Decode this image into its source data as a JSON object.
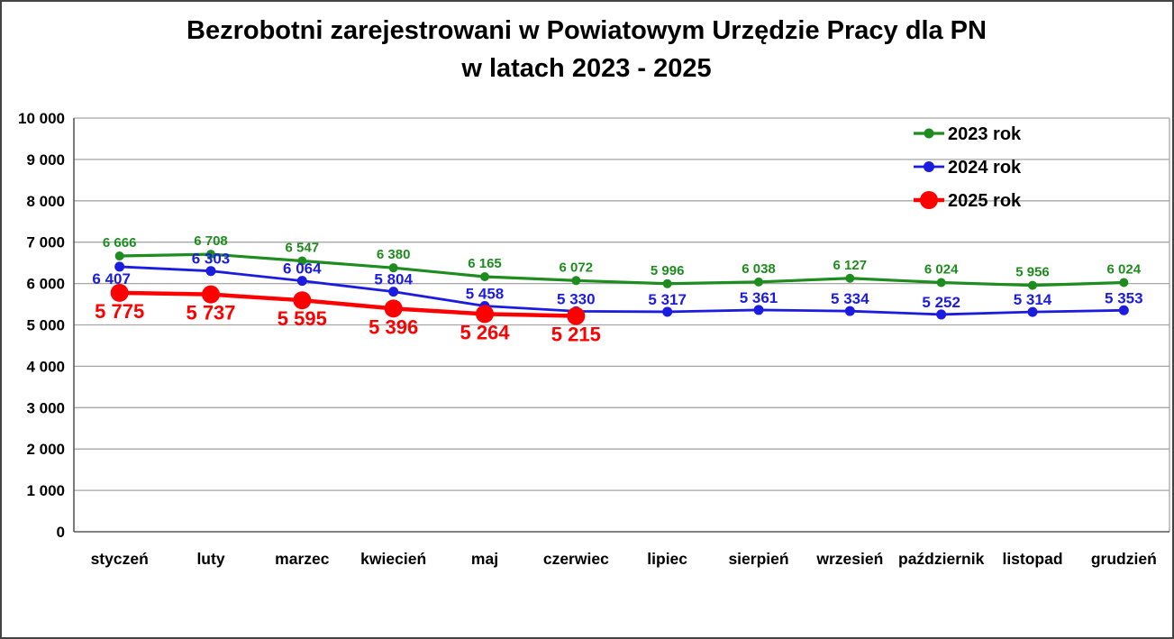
{
  "page": {
    "background": "#ffffff",
    "border_color": "#444444"
  },
  "chart_data": {
    "type": "line",
    "title": "Bezrobotni zarejestrowani w Powiatowym Urzędzie Pracy dla PN w latach 2023 - 2025",
    "title_line1": "Bezrobotni zarejestrowani w Powiatowym Urzędzie Pracy dla PN",
    "title_line2": "w latach 2023 - 2025",
    "xlabel": "",
    "ylabel": "",
    "ylim": [
      0,
      10000
    ],
    "y_ticks": [
      0,
      1000,
      2000,
      3000,
      4000,
      5000,
      6000,
      7000,
      8000,
      9000,
      10000
    ],
    "y_tick_labels": [
      "0",
      "1 000",
      "2 000",
      "3 000",
      "4 000",
      "5 000",
      "6 000",
      "7 000",
      "8 000",
      "9 000",
      "10 000"
    ],
    "grid": true,
    "gridline_color": "#a6a6a6",
    "axis_color": "#595959",
    "text_color": "#000000",
    "legend_position": "top-right",
    "categories": [
      "styczeń",
      "luty",
      "marzec",
      "kwiecień",
      "maj",
      "czerwiec",
      "lipiec",
      "sierpień",
      "wrzesień",
      "październik",
      "listopad",
      "grudzień"
    ],
    "series": [
      {
        "name": "2023 rok",
        "color": "#1e8c1e",
        "values": [
          6666,
          6708,
          6547,
          6380,
          6165,
          6072,
          5996,
          6038,
          6127,
          6024,
          5956,
          6024
        ],
        "labels": [
          "6 666",
          "6 708",
          "6 547",
          "6 380",
          "6 165",
          "6 072",
          "5 996",
          "6 038",
          "6 127",
          "6 024",
          "5 956",
          "6 024"
        ],
        "style": {
          "line_width": 3.2,
          "marker_radius": 5,
          "legend_marker_radius": 5.5,
          "label_size": 15,
          "label_dy": -10
        }
      },
      {
        "name": "2024 rok",
        "color": "#1c1ce0",
        "values": [
          6407,
          6303,
          6064,
          5804,
          5458,
          5330,
          5317,
          5361,
          5334,
          5252,
          5314,
          5353
        ],
        "labels": [
          "6 407",
          "6 303",
          "6 064",
          "5 804",
          "5 458",
          "5 330",
          "5 317",
          "5 361",
          "5 334",
          "5 252",
          "5 314",
          "5 353"
        ],
        "style": {
          "line_width": 2.8,
          "marker_radius": 5.5,
          "legend_marker_radius": 6,
          "label_size": 17,
          "label_dy": -8,
          "label_overrides": {
            "0": {
              "dx": -9,
              "dy": 19
            }
          }
        }
      },
      {
        "name": "2025 rok",
        "color": "#ff0000",
        "values": [
          5775,
          5737,
          5595,
          5396,
          5264,
          5215
        ],
        "labels": [
          "5 775",
          "5 737",
          "5 595",
          "5 396",
          "5 264",
          "5 215"
        ],
        "style": {
          "line_width": 4.5,
          "marker_radius": 10,
          "legend_marker_radius": 10,
          "label_size": 22,
          "label_dy": 28
        }
      }
    ]
  }
}
